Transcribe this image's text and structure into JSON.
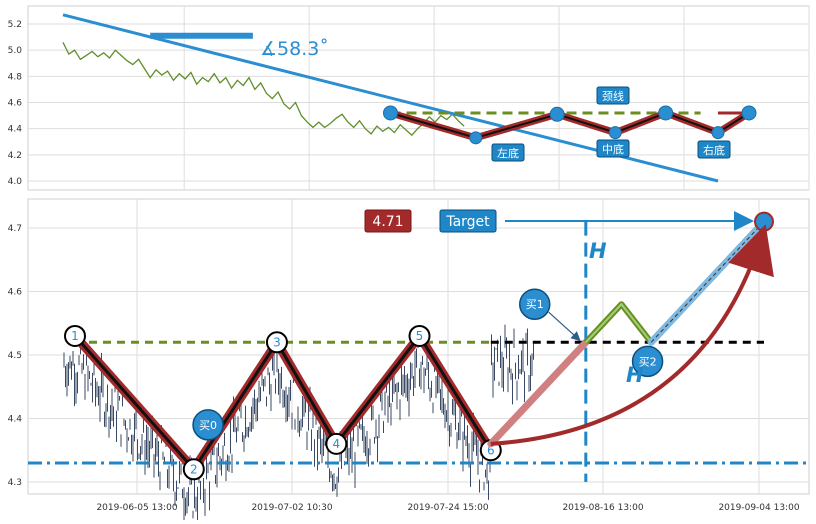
{
  "chart_data": [
    {
      "type": "line",
      "panel": "top",
      "y_ticks": [
        "5.2",
        "5.0",
        "4.8",
        "4.6",
        "4.4",
        "4.2",
        "4.0"
      ],
      "ylim": [
        3.98,
        5.3
      ],
      "grid": true,
      "series": [
        {
          "points": [
            [
              0.0,
              5.06
            ],
            [
              0.03,
              4.97
            ],
            [
              0.06,
              5.0
            ],
            [
              0.09,
              4.93
            ],
            [
              0.12,
              4.96
            ],
            [
              0.15,
              4.99
            ],
            [
              0.18,
              4.95
            ],
            [
              0.21,
              4.98
            ],
            [
              0.24,
              4.94
            ],
            [
              0.27,
              5.0
            ],
            [
              0.3,
              4.96
            ],
            [
              0.33,
              4.92
            ],
            [
              0.36,
              4.89
            ],
            [
              0.39,
              4.93
            ],
            [
              0.42,
              4.86
            ],
            [
              0.45,
              4.79
            ],
            [
              0.48,
              4.85
            ],
            [
              0.51,
              4.81
            ],
            [
              0.54,
              4.84
            ],
            [
              0.57,
              4.77
            ],
            [
              0.6,
              4.82
            ],
            [
              0.63,
              4.78
            ],
            [
              0.66,
              4.83
            ],
            [
              0.69,
              4.74
            ],
            [
              0.72,
              4.79
            ],
            [
              0.75,
              4.76
            ],
            [
              0.78,
              4.82
            ],
            [
              0.81,
              4.75
            ],
            [
              0.84,
              4.79
            ],
            [
              0.87,
              4.71
            ],
            [
              0.9,
              4.77
            ],
            [
              0.93,
              4.73
            ],
            [
              0.96,
              4.79
            ],
            [
              0.99,
              4.7
            ],
            [
              1.02,
              4.75
            ],
            [
              1.05,
              4.67
            ],
            [
              1.08,
              4.63
            ],
            [
              1.11,
              4.68
            ],
            [
              1.14,
              4.59
            ],
            [
              1.17,
              4.55
            ],
            [
              1.2,
              4.6
            ],
            [
              1.23,
              4.5
            ],
            [
              1.26,
              4.45
            ],
            [
              1.29,
              4.41
            ],
            [
              1.32,
              4.45
            ],
            [
              1.35,
              4.41
            ],
            [
              1.38,
              4.44
            ],
            [
              1.41,
              4.48
            ],
            [
              1.44,
              4.51
            ],
            [
              1.47,
              4.45
            ],
            [
              1.5,
              4.41
            ],
            [
              1.53,
              4.46
            ],
            [
              1.56,
              4.4
            ],
            [
              1.59,
              4.36
            ],
            [
              1.62,
              4.42
            ],
            [
              1.65,
              4.38
            ],
            [
              1.68,
              4.41
            ],
            [
              1.71,
              4.37
            ],
            [
              1.74,
              4.43
            ],
            [
              1.77,
              4.39
            ],
            [
              1.8,
              4.35
            ],
            [
              1.83,
              4.4
            ],
            [
              1.86,
              4.44
            ],
            [
              1.89,
              4.49
            ],
            [
              1.92,
              4.45
            ],
            [
              1.95,
              4.5
            ],
            [
              1.98,
              4.47
            ],
            [
              2.01,
              4.51
            ],
            [
              2.04,
              4.46
            ],
            [
              2.07,
              4.42
            ]
          ]
        }
      ],
      "trendline": [
        [
          0.0,
          5.27
        ],
        [
          3.38,
          4.0
        ]
      ],
      "angle_bar": [
        [
          0.45,
          5.11
        ],
        [
          0.98,
          5.11
        ]
      ],
      "angle_label": "∡58.3˚",
      "neckline": [
        [
          1.69,
          4.52
        ],
        [
          3.29,
          4.52
        ]
      ],
      "pattern_points": [
        [
          1.69,
          4.52
        ],
        [
          2.13,
          4.33
        ],
        [
          2.55,
          4.51
        ],
        [
          2.85,
          4.37
        ],
        [
          3.11,
          4.52
        ],
        [
          3.38,
          4.37
        ],
        [
          3.54,
          4.52
        ]
      ],
      "tail_line": [
        [
          3.38,
          4.52
        ],
        [
          3.54,
          4.52
        ]
      ],
      "labels": {
        "neck": "颈线",
        "left": "左底",
        "mid": "中底",
        "right": "右底"
      }
    },
    {
      "type": "line",
      "panel": "bottom",
      "y_ticks": [
        "4.7",
        "4.6",
        "4.5",
        "4.4",
        "4.3"
      ],
      "ylim": [
        4.28,
        4.74
      ],
      "x_ticks": [
        "2019-06-05 13:00",
        "2019-07-02 10:30",
        "2019-07-24 15:00",
        "2019-08-16 13:00",
        "2019-09-04 13:00"
      ],
      "grid": true,
      "price_seed": 7,
      "target_value": "4.71",
      "target_label": "Target",
      "h_label": "H",
      "support_level": 4.33,
      "neckline_value": 4.52,
      "pattern_points": [
        {
          "label": "1",
          "x": 0.0,
          "y": 4.53
        },
        {
          "label": "2",
          "x": 1.0,
          "y": 4.32
        },
        {
          "label": "3",
          "x": 1.7,
          "y": 4.52
        },
        {
          "label": "4",
          "x": 2.2,
          "y": 4.36
        },
        {
          "label": "5",
          "x": 2.9,
          "y": 4.53
        },
        {
          "label": "6",
          "x": 3.5,
          "y": 4.35
        }
      ],
      "projection": [
        [
          3.5,
          4.36
        ],
        [
          4.3,
          4.52
        ],
        [
          4.6,
          4.58
        ],
        [
          4.85,
          4.52
        ],
        [
          5.8,
          4.71
        ]
      ],
      "buy_markers": [
        {
          "label": "买0",
          "x": 1.12,
          "y": 4.39
        },
        {
          "label": "买1",
          "x": 3.87,
          "y": 4.58
        },
        {
          "label": "买2",
          "x": 4.82,
          "y": 4.49
        }
      ]
    }
  ]
}
